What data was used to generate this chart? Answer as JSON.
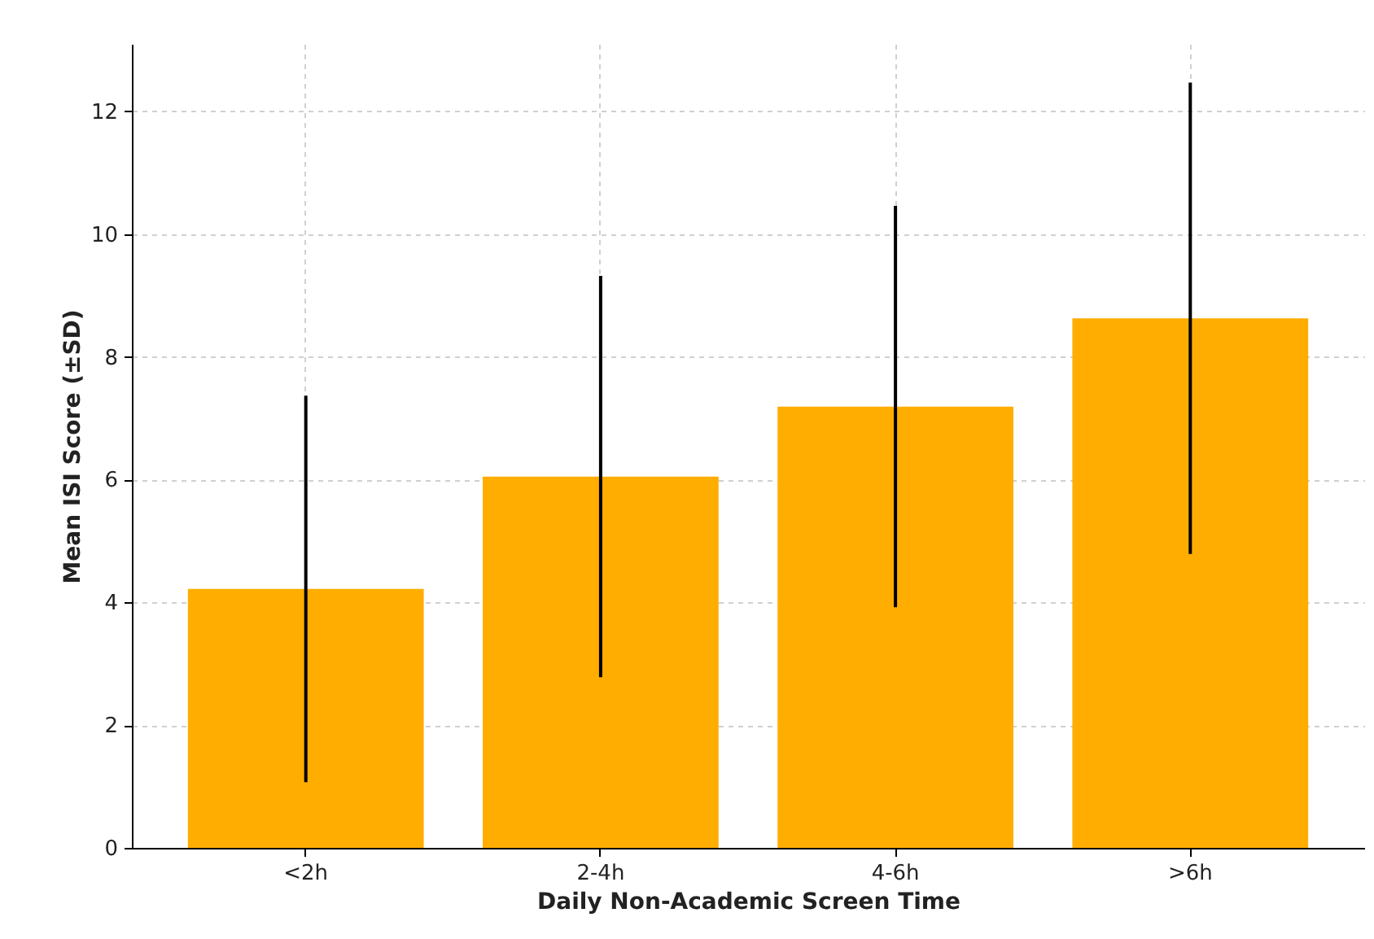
{
  "chart_data": {
    "type": "bar",
    "xlabel": "Daily Non-Academic Screen Time",
    "ylabel": "Mean ISI Score (±SD)",
    "categories": [
      "<2h",
      "2-4h",
      "4-6h",
      ">6h"
    ],
    "values": [
      4.22,
      6.05,
      7.19,
      8.63
    ],
    "errors": [
      3.15,
      3.27,
      3.27,
      3.84
    ],
    "color": "#ffad00",
    "ylim": [
      0,
      13.1
    ],
    "yticks": [
      0,
      2,
      4,
      6,
      8,
      10,
      12
    ],
    "grid": true
  }
}
